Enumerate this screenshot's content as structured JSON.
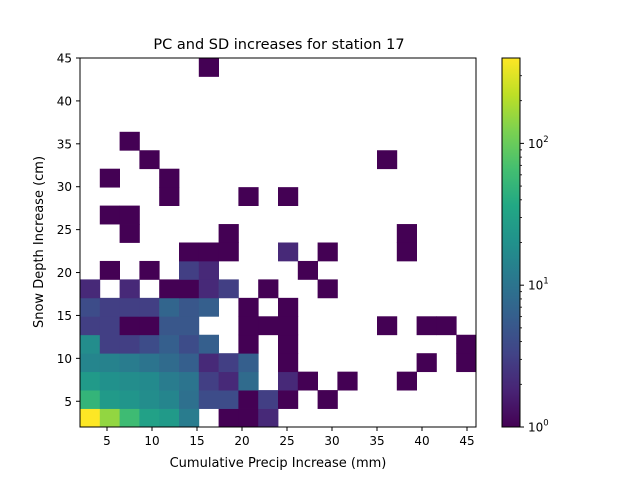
{
  "chart_data": {
    "type": "heatmap",
    "title": "PC and SD increases for station 17",
    "xlabel": "Cumulative Precip Increase (mm)",
    "ylabel": "Snow Depth Increase (cm)",
    "xlim": [
      2,
      46
    ],
    "ylim": [
      2,
      45
    ],
    "x_ticks": [
      5,
      10,
      15,
      20,
      25,
      30,
      35,
      40,
      45
    ],
    "y_ticks": [
      5,
      10,
      15,
      20,
      25,
      30,
      35,
      40,
      45
    ],
    "x_bin_edges": [
      2,
      4.2,
      6.4,
      8.6,
      10.8,
      13,
      15.2,
      17.4,
      19.6,
      21.8,
      24,
      26.2,
      28.4,
      30.6,
      32.8,
      35,
      37.2,
      39.4,
      41.6,
      43.8,
      46
    ],
    "y_bin_edges": [
      2,
      4.15,
      6.3,
      8.45,
      10.6,
      12.75,
      14.9,
      17.05,
      19.2,
      21.35,
      23.5,
      25.65,
      27.8,
      29.95,
      32.1,
      34.25,
      36.4,
      38.55,
      40.7,
      42.85,
      45
    ],
    "colorbar": {
      "scale": "log",
      "min": 1,
      "max": 400,
      "colormap": "viridis",
      "tick_labels": [
        {
          "base": "10",
          "exp": "0",
          "value": 1
        },
        {
          "base": "10",
          "exp": "1",
          "value": 10
        },
        {
          "base": "10",
          "exp": "2",
          "value": 100
        }
      ]
    },
    "counts": [
      [
        400,
        150,
        60,
        30,
        25,
        12,
        0,
        1,
        1,
        2,
        0,
        0,
        0,
        0,
        0,
        0,
        0,
        0,
        0,
        0
      ],
      [
        50,
        25,
        22,
        18,
        15,
        9,
        4,
        4,
        1,
        3,
        1,
        0,
        1,
        0,
        0,
        0,
        0,
        0,
        0,
        0
      ],
      [
        25,
        20,
        18,
        17,
        12,
        10,
        3,
        2,
        8,
        0,
        2,
        1,
        0,
        1,
        0,
        0,
        1,
        0,
        0,
        0
      ],
      [
        15,
        14,
        12,
        10,
        8,
        6,
        2,
        3,
        6,
        0,
        1,
        0,
        0,
        0,
        0,
        0,
        0,
        1,
        0,
        1
      ],
      [
        18,
        3,
        3,
        4,
        6,
        4,
        6,
        0,
        1,
        0,
        1,
        0,
        0,
        0,
        0,
        0,
        0,
        0,
        0,
        1
      ],
      [
        3,
        3,
        1,
        1,
        5,
        5,
        0,
        0,
        1,
        1,
        1,
        0,
        0,
        0,
        0,
        1,
        0,
        1,
        1,
        0
      ],
      [
        4,
        3,
        3,
        3,
        7,
        5,
        6,
        0,
        1,
        0,
        1,
        0,
        0,
        0,
        0,
        0,
        0,
        0,
        0,
        0
      ],
      [
        2,
        0,
        2,
        0,
        1,
        1,
        2,
        3,
        0,
        1,
        0,
        0,
        1,
        0,
        0,
        0,
        0,
        0,
        0,
        0
      ],
      [
        0,
        1,
        0,
        1,
        0,
        3,
        2,
        0,
        0,
        0,
        0,
        1,
        0,
        0,
        0,
        0,
        0,
        0,
        0,
        0
      ],
      [
        0,
        0,
        0,
        0,
        0,
        1,
        1,
        1,
        0,
        0,
        2,
        0,
        1,
        0,
        0,
        0,
        1,
        0,
        0,
        0
      ],
      [
        0,
        0,
        1,
        0,
        0,
        0,
        0,
        1,
        0,
        0,
        0,
        0,
        0,
        0,
        0,
        0,
        1,
        0,
        0,
        0
      ],
      [
        0,
        1,
        1,
        0,
        0,
        0,
        0,
        0,
        0,
        0,
        0,
        0,
        0,
        0,
        0,
        0,
        0,
        0,
        0,
        0
      ],
      [
        0,
        0,
        0,
        0,
        1,
        0,
        0,
        0,
        1,
        0,
        1,
        0,
        0,
        0,
        0,
        0,
        0,
        0,
        0,
        0
      ],
      [
        0,
        1,
        0,
        0,
        1,
        0,
        0,
        0,
        0,
        0,
        0,
        0,
        0,
        0,
        0,
        0,
        0,
        0,
        0,
        0
      ],
      [
        0,
        0,
        0,
        1,
        0,
        0,
        0,
        0,
        0,
        0,
        0,
        0,
        0,
        0,
        0,
        1,
        0,
        0,
        0,
        0
      ],
      [
        0,
        0,
        1,
        0,
        0,
        0,
        0,
        0,
        0,
        0,
        0,
        0,
        0,
        0,
        0,
        0,
        0,
        0,
        0,
        0
      ],
      [
        0,
        0,
        0,
        0,
        0,
        0,
        0,
        0,
        0,
        0,
        0,
        0,
        0,
        0,
        0,
        0,
        0,
        0,
        0,
        0
      ],
      [
        0,
        0,
        0,
        0,
        0,
        0,
        0,
        0,
        0,
        0,
        0,
        0,
        0,
        0,
        0,
        0,
        0,
        0,
        0,
        0
      ],
      [
        0,
        0,
        0,
        0,
        0,
        0,
        0,
        0,
        0,
        0,
        0,
        0,
        0,
        0,
        0,
        0,
        0,
        0,
        0,
        0
      ],
      [
        0,
        0,
        0,
        0,
        0,
        0,
        1,
        0,
        0,
        0,
        0,
        0,
        0,
        0,
        0,
        0,
        0,
        0,
        0,
        0
      ]
    ]
  }
}
